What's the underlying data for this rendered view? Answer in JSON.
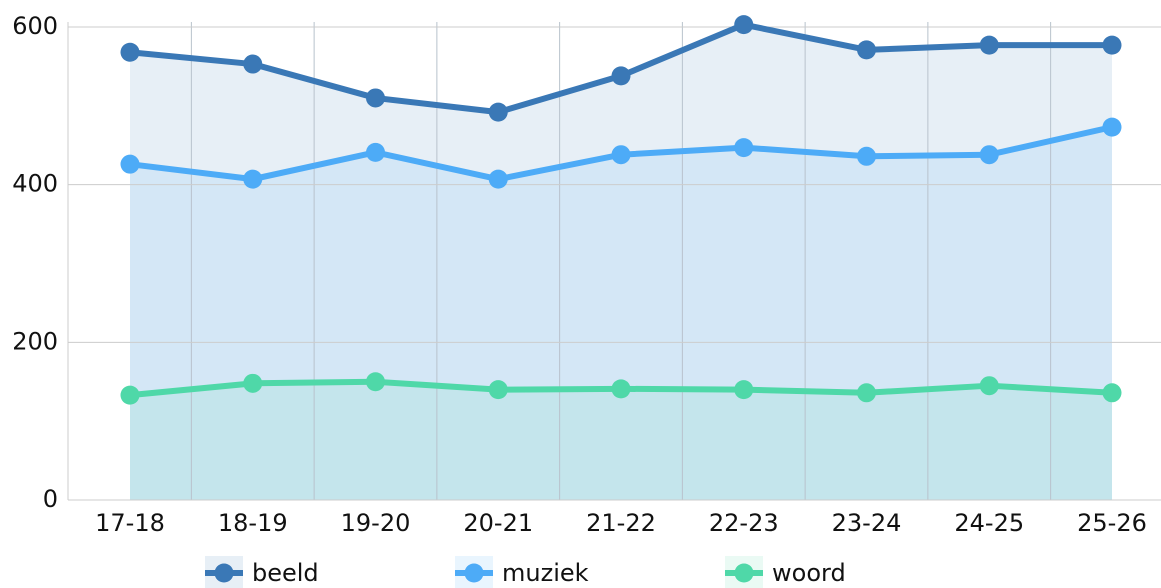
{
  "chart_data": {
    "type": "line",
    "categories": [
      "17-18",
      "18-19",
      "19-20",
      "20-21",
      "21-22",
      "22-23",
      "23-24",
      "24-25",
      "25-26"
    ],
    "series": [
      {
        "name": "beeld",
        "color": "#3a78b6",
        "values": [
          568,
          553,
          510,
          492,
          538,
          603,
          571,
          577,
          577
        ]
      },
      {
        "name": "muziek",
        "color": "#4dabf7",
        "values": [
          426,
          407,
          441,
          407,
          438,
          447,
          436,
          438,
          473
        ]
      },
      {
        "name": "woord",
        "color": "#4fd8a8",
        "values": [
          133,
          148,
          150,
          140,
          141,
          140,
          136,
          145,
          136
        ]
      }
    ],
    "ylim": [
      0,
      600
    ],
    "yticks": [
      0,
      200,
      400,
      600
    ],
    "grid": true,
    "area": true,
    "legend": "bottom"
  }
}
